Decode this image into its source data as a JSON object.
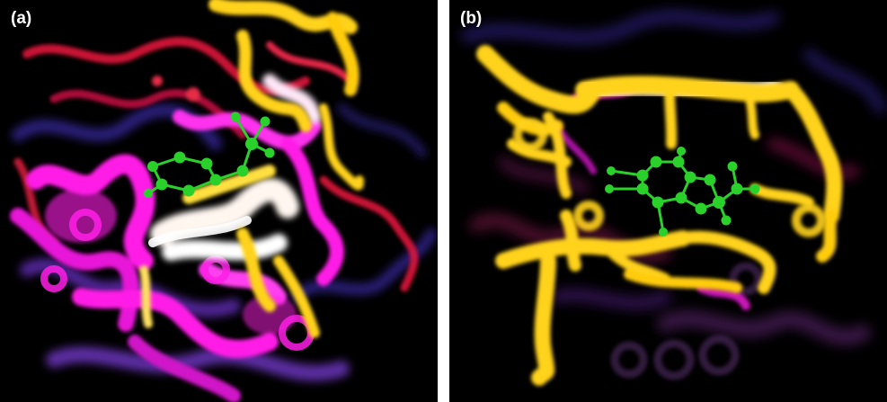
{
  "figure": {
    "panels": [
      {
        "label": "(a)"
      },
      {
        "label": "(b)"
      }
    ]
  },
  "colors": {
    "background": "#000000",
    "separator": "#ffffff",
    "magenta": "#ff1ee6",
    "red": "#e0153a",
    "yellow": "#ffd21a",
    "white_glow": "#fff6f0",
    "blue": "#3a2aa8",
    "violet": "#7a3cd8",
    "ligand_green": "#2bd12b"
  },
  "icons": [
    "molecular-ribbon-render",
    "ball-and-stick-ligand"
  ]
}
